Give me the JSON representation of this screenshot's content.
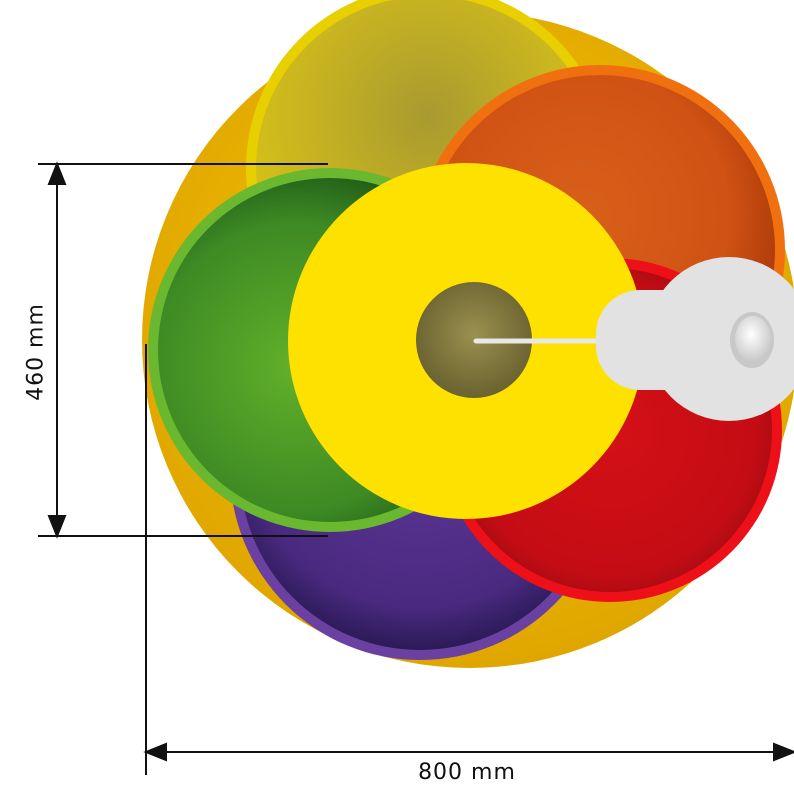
{
  "dimensions": {
    "width_label": "800 mm",
    "height_label": "460 mm",
    "width_mm": 800,
    "height_mm": 460
  },
  "colors": {
    "base": "#e8b400",
    "yellow_bowl": "#d8c010",
    "orange_bowl": "#e06010",
    "green_bowl": "#5aa82a",
    "red_bowl": "#d8101c",
    "purple_bowl": "#5a3590",
    "yellow_disc": "#ffe000",
    "center_hub": "#8a8040",
    "white_handle": "#e2e2e2"
  }
}
